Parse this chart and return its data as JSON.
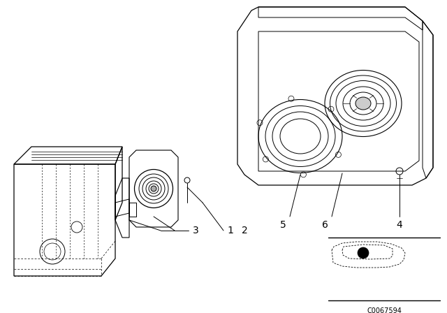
{
  "bg_color": "#ffffff",
  "part_number": "C0067594",
  "fig_width": 6.4,
  "fig_height": 4.48,
  "dpi": 100
}
